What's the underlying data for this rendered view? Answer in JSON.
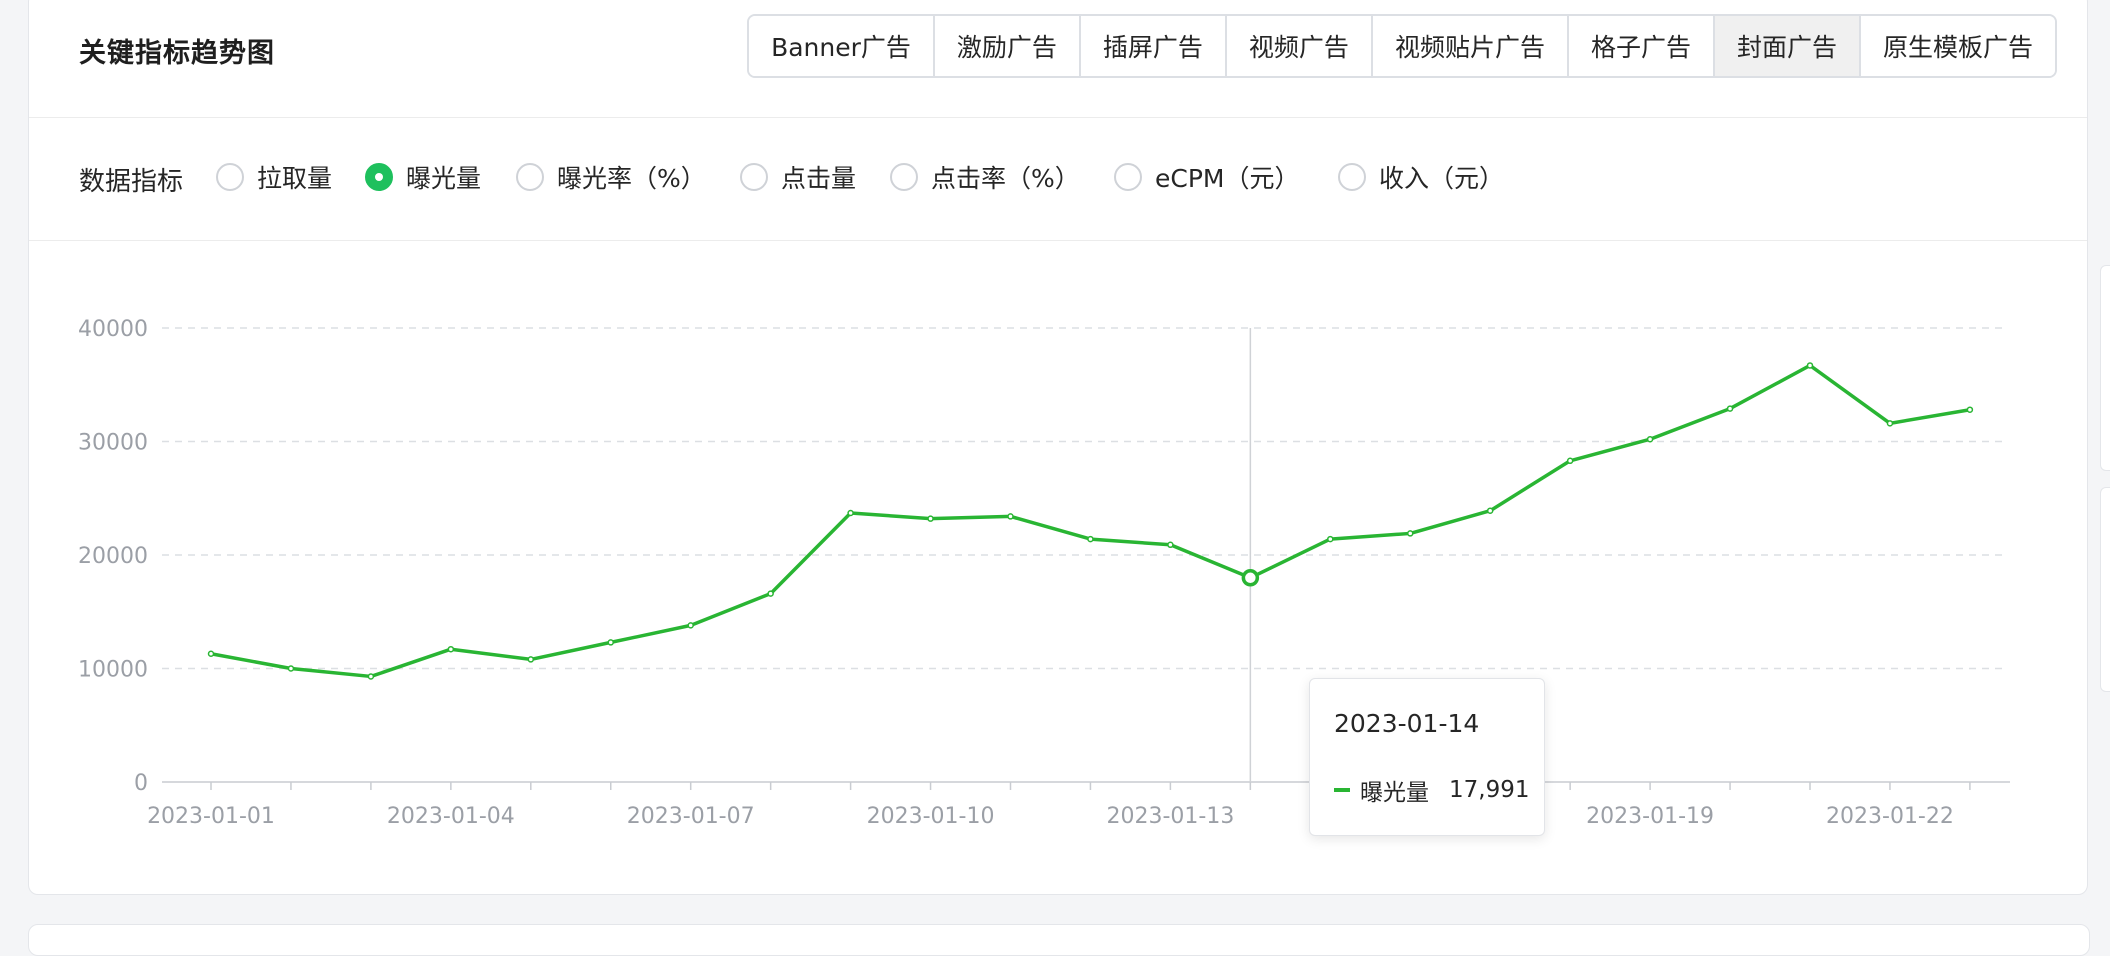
{
  "header": {
    "title": "关键指标趋势图",
    "tabs": [
      {
        "label": "Banner广告",
        "active": false
      },
      {
        "label": "激励广告",
        "active": false
      },
      {
        "label": "插屏广告",
        "active": false
      },
      {
        "label": "视频广告",
        "active": false
      },
      {
        "label": "视频贴片广告",
        "active": false
      },
      {
        "label": "格子广告",
        "active": false
      },
      {
        "label": "封面广告",
        "active": true
      },
      {
        "label": "原生模板广告",
        "active": false
      }
    ]
  },
  "metrics": {
    "label": "数据指标",
    "options": [
      {
        "label": "拉取量",
        "checked": false
      },
      {
        "label": "曝光量",
        "checked": true
      },
      {
        "label": "曝光率（%）",
        "checked": false
      },
      {
        "label": "点击量",
        "checked": false
      },
      {
        "label": "点击率（%）",
        "checked": false
      },
      {
        "label": "eCPM（元）",
        "checked": false
      },
      {
        "label": "收入（元）",
        "checked": false
      }
    ]
  },
  "colors": {
    "accent": "#1ec05d",
    "line": "#29b533"
  },
  "chart_data": {
    "type": "line",
    "x": [
      "2023-01-01",
      "2023-01-02",
      "2023-01-03",
      "2023-01-04",
      "2023-01-05",
      "2023-01-06",
      "2023-01-07",
      "2023-01-08",
      "2023-01-09",
      "2023-01-10",
      "2023-01-11",
      "2023-01-12",
      "2023-01-13",
      "2023-01-14",
      "2023-01-15",
      "2023-01-16",
      "2023-01-17",
      "2023-01-18",
      "2023-01-19",
      "2023-01-20",
      "2023-01-21",
      "2023-01-22",
      "2023-01-23"
    ],
    "x_tick_labels": [
      "2023-01-01",
      "2023-01-04",
      "2023-01-07",
      "2023-01-10",
      "2023-01-13",
      "2023-01-19",
      "2023-01-22"
    ],
    "y_tick_labels": [
      "0",
      "10000",
      "20000",
      "30000",
      "40000"
    ],
    "series": [
      {
        "name": "曝光量",
        "values": [
          11300,
          10000,
          9300,
          11700,
          10800,
          12300,
          13800,
          16600,
          23700,
          23200,
          23400,
          21400,
          20900,
          17991,
          21400,
          21900,
          23900,
          28300,
          30200,
          32900,
          36700,
          31600,
          32800
        ]
      }
    ],
    "ylim": [
      0,
      40000
    ],
    "grid": true,
    "highlight": {
      "date": "2023-01-14",
      "series": "曝光量",
      "value": "17,991"
    }
  }
}
